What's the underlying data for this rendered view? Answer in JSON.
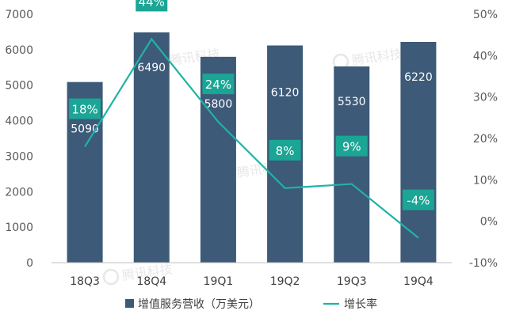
{
  "chart_data": {
    "type": "bar",
    "categories": [
      "18Q3",
      "18Q4",
      "19Q1",
      "19Q2",
      "19Q3",
      "19Q4"
    ],
    "series": [
      {
        "name": "增值服务营收（万美元）",
        "type": "bar",
        "axis": "left",
        "values": [
          5090,
          6490,
          5800,
          6120,
          5530,
          6220
        ],
        "color": "#3d5a78"
      },
      {
        "name": "增长率",
        "type": "line",
        "axis": "right",
        "values": [
          18,
          44,
          24,
          8,
          9,
          -4
        ],
        "labels": [
          "18%",
          "44%",
          "24%",
          "8%",
          "9%",
          "-4%"
        ],
        "color": "#1fb3a6"
      }
    ],
    "y_left": {
      "min": 0,
      "max": 7000,
      "ticks": [
        "0",
        "1000",
        "2000",
        "3000",
        "4000",
        "5000",
        "6000",
        "7000"
      ]
    },
    "y_right": {
      "min": -10,
      "max": 50,
      "ticks": [
        "-10%",
        "0%",
        "10%",
        "20%",
        "30%",
        "40%",
        "50%"
      ]
    },
    "grid": false,
    "legend_position": "bottom",
    "watermark": "腾讯科技"
  }
}
